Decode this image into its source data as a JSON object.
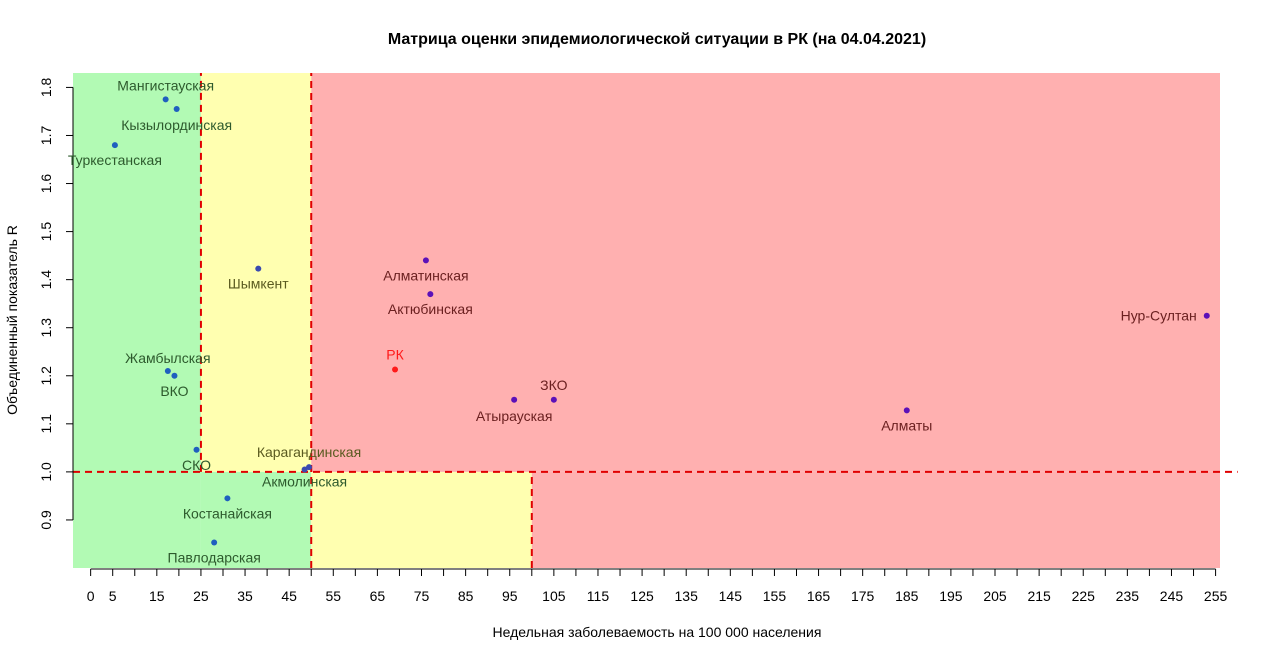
{
  "chart_data": {
    "type": "scatter",
    "title": "Матрица оценки эпидемиологической ситуации в РК (на 04.04.2021)",
    "xlabel": "Недельная заболеваемость на 100 000 населения",
    "ylabel": "Объединенный показатель R",
    "xlim": [
      -4,
      256
    ],
    "ylim": [
      0.8,
      1.83
    ],
    "x_ticks": [
      0,
      5,
      15,
      25,
      35,
      45,
      55,
      65,
      75,
      85,
      95,
      105,
      115,
      125,
      135,
      145,
      155,
      165,
      175,
      185,
      195,
      205,
      215,
      225,
      235,
      245,
      255
    ],
    "x_tick_labels": [
      "0",
      "5",
      "15",
      "25",
      "35",
      "45",
      "55",
      "65",
      "75",
      "85",
      "95",
      "105",
      "115",
      "125",
      "135",
      "145",
      "155",
      "165",
      "175",
      "185",
      "195",
      "205",
      "215",
      "225",
      "235",
      "245",
      "255"
    ],
    "x_minor_ticks": [
      10,
      20,
      30,
      40,
      50,
      60,
      70,
      80,
      90,
      100,
      110,
      120,
      130,
      140,
      150,
      160,
      170,
      180,
      190,
      200,
      210,
      220,
      230,
      240,
      250
    ],
    "y_ticks": [
      0.9,
      1.0,
      1.1,
      1.2,
      1.3,
      1.4,
      1.5,
      1.6,
      1.7,
      1.8
    ],
    "y_tick_labels": [
      "0.9",
      "1.0",
      "1.1",
      "1.2",
      "1.3",
      "1.4",
      "1.5",
      "1.6",
      "1.7",
      "1.8"
    ],
    "grid": false,
    "zones": [
      {
        "x0": -4,
        "x1": 25,
        "y0": 0.8,
        "y1": 1.83,
        "color": "#b2fab4"
      },
      {
        "x0": 25,
        "x1": 50,
        "y0": 1.0,
        "y1": 1.83,
        "color": "#ffffb0"
      },
      {
        "x0": 25,
        "x1": 50,
        "y0": 0.8,
        "y1": 1.0,
        "color": "#b2fab4"
      },
      {
        "x0": 50,
        "x1": 100,
        "y0": 0.8,
        "y1": 1.0,
        "color": "#ffffb0"
      },
      {
        "x0": 50,
        "x1": 256,
        "y0": 1.0,
        "y1": 1.83,
        "color": "#ffb0b0"
      },
      {
        "x0": 100,
        "x1": 256,
        "y0": 0.8,
        "y1": 1.0,
        "color": "#ffb0b0"
      }
    ],
    "reference_lines": [
      {
        "orientation": "h",
        "value": 1.0,
        "from": -4,
        "to": 260,
        "color": "#e00000"
      },
      {
        "orientation": "v",
        "value": 25,
        "from": 1.0,
        "to": 1.83,
        "color": "#e00000"
      },
      {
        "orientation": "v",
        "value": 50,
        "from": 0.8,
        "to": 1.83,
        "color": "#e00000"
      },
      {
        "orientation": "v",
        "value": 100,
        "from": 0.8,
        "to": 1.0,
        "color": "#e00000"
      }
    ],
    "points": [
      {
        "label": "Мангистауская",
        "x": 17,
        "y": 1.775,
        "color": "#1f5fbf",
        "label_color": "#2d5a2d",
        "anchor": "middle",
        "dx": 0,
        "dy": -9
      },
      {
        "label": "Кызылординская",
        "x": 19.5,
        "y": 1.755,
        "color": "#1f5fbf",
        "label_color": "#2d5a2d",
        "anchor": "middle",
        "dx": 0,
        "dy": 21
      },
      {
        "label": "Туркестанская",
        "x": 5.5,
        "y": 1.68,
        "color": "#1f5fbf",
        "label_color": "#2d5a2d",
        "anchor": "middle",
        "dx": 0,
        "dy": 20
      },
      {
        "label": "Шымкент",
        "x": 38,
        "y": 1.423,
        "color": "#3a4ab0",
        "label_color": "#5a5a20",
        "anchor": "middle",
        "dx": 0,
        "dy": 20
      },
      {
        "label": "Жамбылская",
        "x": 17.5,
        "y": 1.21,
        "color": "#1f5fbf",
        "label_color": "#2d5a2d",
        "anchor": "middle",
        "dx": 0,
        "dy": -8
      },
      {
        "label": "ВКО",
        "x": 19,
        "y": 1.2,
        "color": "#1f5fbf",
        "label_color": "#2d5a2d",
        "anchor": "middle",
        "dx": 0,
        "dy": 20
      },
      {
        "label": "СКО",
        "x": 24,
        "y": 1.046,
        "color": "#1f5fbf",
        "label_color": "#2d5a2d",
        "anchor": "middle",
        "dx": 0,
        "dy": 20
      },
      {
        "label": "Карагандинская",
        "x": 49.5,
        "y": 1.01,
        "color": "#3a4ab0",
        "label_color": "#5a5a20",
        "anchor": "middle",
        "dx": 0,
        "dy": -10
      },
      {
        "label": "Акмолинская",
        "x": 48.5,
        "y": 1.005,
        "color": "#3a4ab0",
        "label_color": "#2d5a2d",
        "anchor": "middle",
        "dx": 0,
        "dy": 17
      },
      {
        "label": "Костанайская",
        "x": 31,
        "y": 0.945,
        "color": "#1f5fbf",
        "label_color": "#2d5a2d",
        "anchor": "middle",
        "dx": 0,
        "dy": 20
      },
      {
        "label": "Павлодарская",
        "x": 28,
        "y": 0.853,
        "color": "#1f5fbf",
        "label_color": "#2d5a2d",
        "anchor": "middle",
        "dx": 0,
        "dy": 20
      },
      {
        "label": "Алматинская",
        "x": 76,
        "y": 1.44,
        "color": "#5b10b8",
        "label_color": "#6b2020",
        "anchor": "middle",
        "dx": 0,
        "dy": 20
      },
      {
        "label": "Актюбинская",
        "x": 77,
        "y": 1.37,
        "color": "#5b10b8",
        "label_color": "#6b2020",
        "anchor": "middle",
        "dx": 0,
        "dy": 20
      },
      {
        "label": "РК",
        "x": 69,
        "y": 1.213,
        "color": "#ff1a1a",
        "label_color": "#ff1a1a",
        "anchor": "middle",
        "dx": 0,
        "dy": -10
      },
      {
        "label": "ЗКО",
        "x": 105,
        "y": 1.15,
        "color": "#5b10b8",
        "label_color": "#6b2020",
        "anchor": "middle",
        "dx": 0,
        "dy": -10
      },
      {
        "label": "Атырауская",
        "x": 96,
        "y": 1.15,
        "color": "#5b10b8",
        "label_color": "#6b2020",
        "anchor": "middle",
        "dx": 0,
        "dy": 21
      },
      {
        "label": "Алматы",
        "x": 185,
        "y": 1.128,
        "color": "#5b10b8",
        "label_color": "#6b2020",
        "anchor": "middle",
        "dx": 0,
        "dy": 20
      },
      {
        "label": "Нур-Султан",
        "x": 253,
        "y": 1.325,
        "color": "#5b10b8",
        "label_color": "#6b2020",
        "anchor": "end",
        "dx": -10,
        "dy": 5
      }
    ]
  }
}
